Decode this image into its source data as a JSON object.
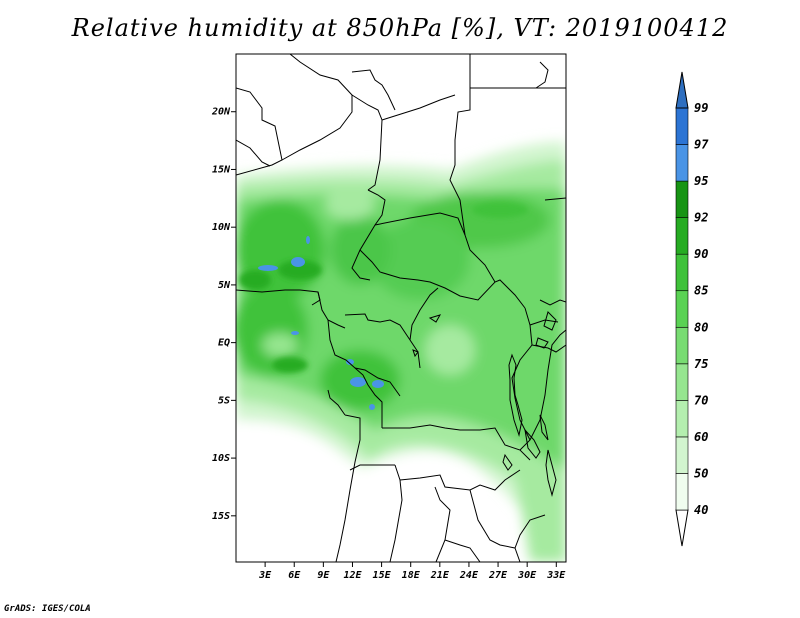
{
  "title": "Relative humidity at 850hPa [%], VT: 2019100412",
  "credit": "GrADS: IGES/COLA",
  "map": {
    "lon_range": [
      0,
      34
    ],
    "lat_range": [
      -19,
      25
    ],
    "lat_ticks": [
      {
        "value": 20,
        "label": "20N"
      },
      {
        "value": 15,
        "label": "15N"
      },
      {
        "value": 10,
        "label": "10N"
      },
      {
        "value": 5,
        "label": "5N"
      },
      {
        "value": 0,
        "label": "EQ"
      },
      {
        "value": -5,
        "label": "5S"
      },
      {
        "value": -10,
        "label": "10S"
      },
      {
        "value": -15,
        "label": "15S"
      }
    ],
    "lon_ticks": [
      {
        "value": 3,
        "label": "3E"
      },
      {
        "value": 6,
        "label": "6E"
      },
      {
        "value": 9,
        "label": "9E"
      },
      {
        "value": 12,
        "label": "12E"
      },
      {
        "value": 15,
        "label": "15E"
      },
      {
        "value": 18,
        "label": "18E"
      },
      {
        "value": 21,
        "label": "21E"
      },
      {
        "value": 24,
        "label": "24E"
      },
      {
        "value": 27,
        "label": "27E"
      },
      {
        "value": 30,
        "label": "30E"
      },
      {
        "value": 33,
        "label": "33E"
      }
    ],
    "fill_colors": {
      "land_bg": "#ffffff",
      "rh_40": "#e8fbe6",
      "rh_50": "#c8f2c4",
      "rh_60": "#a6eaa0",
      "rh_70": "#8ae286",
      "rh_75": "#6ed86a",
      "rh_80": "#55cc52",
      "rh_85": "#3cbd3a",
      "rh_90": "#24a822",
      "rh_95": "#4a94e6"
    }
  },
  "colorbar": {
    "levels": [
      {
        "label": "40",
        "color": "#f0fdef"
      },
      {
        "label": "50",
        "color": "#d2f5cf"
      },
      {
        "label": "60",
        "color": "#b4efaf"
      },
      {
        "label": "70",
        "color": "#96e690"
      },
      {
        "label": "75",
        "color": "#78dc72"
      },
      {
        "label": "80",
        "color": "#5ad254"
      },
      {
        "label": "85",
        "color": "#3fc23a"
      },
      {
        "label": "90",
        "color": "#26ac22"
      },
      {
        "label": "92",
        "color": "#179414"
      },
      {
        "label": "95",
        "color": "#4a94e6"
      },
      {
        "label": "97",
        "color": "#2c74d4"
      },
      {
        "label": "99",
        "color": "#1a5abc"
      }
    ],
    "top_color": "#2e6fc0",
    "bottom_color": "#ffffff"
  }
}
